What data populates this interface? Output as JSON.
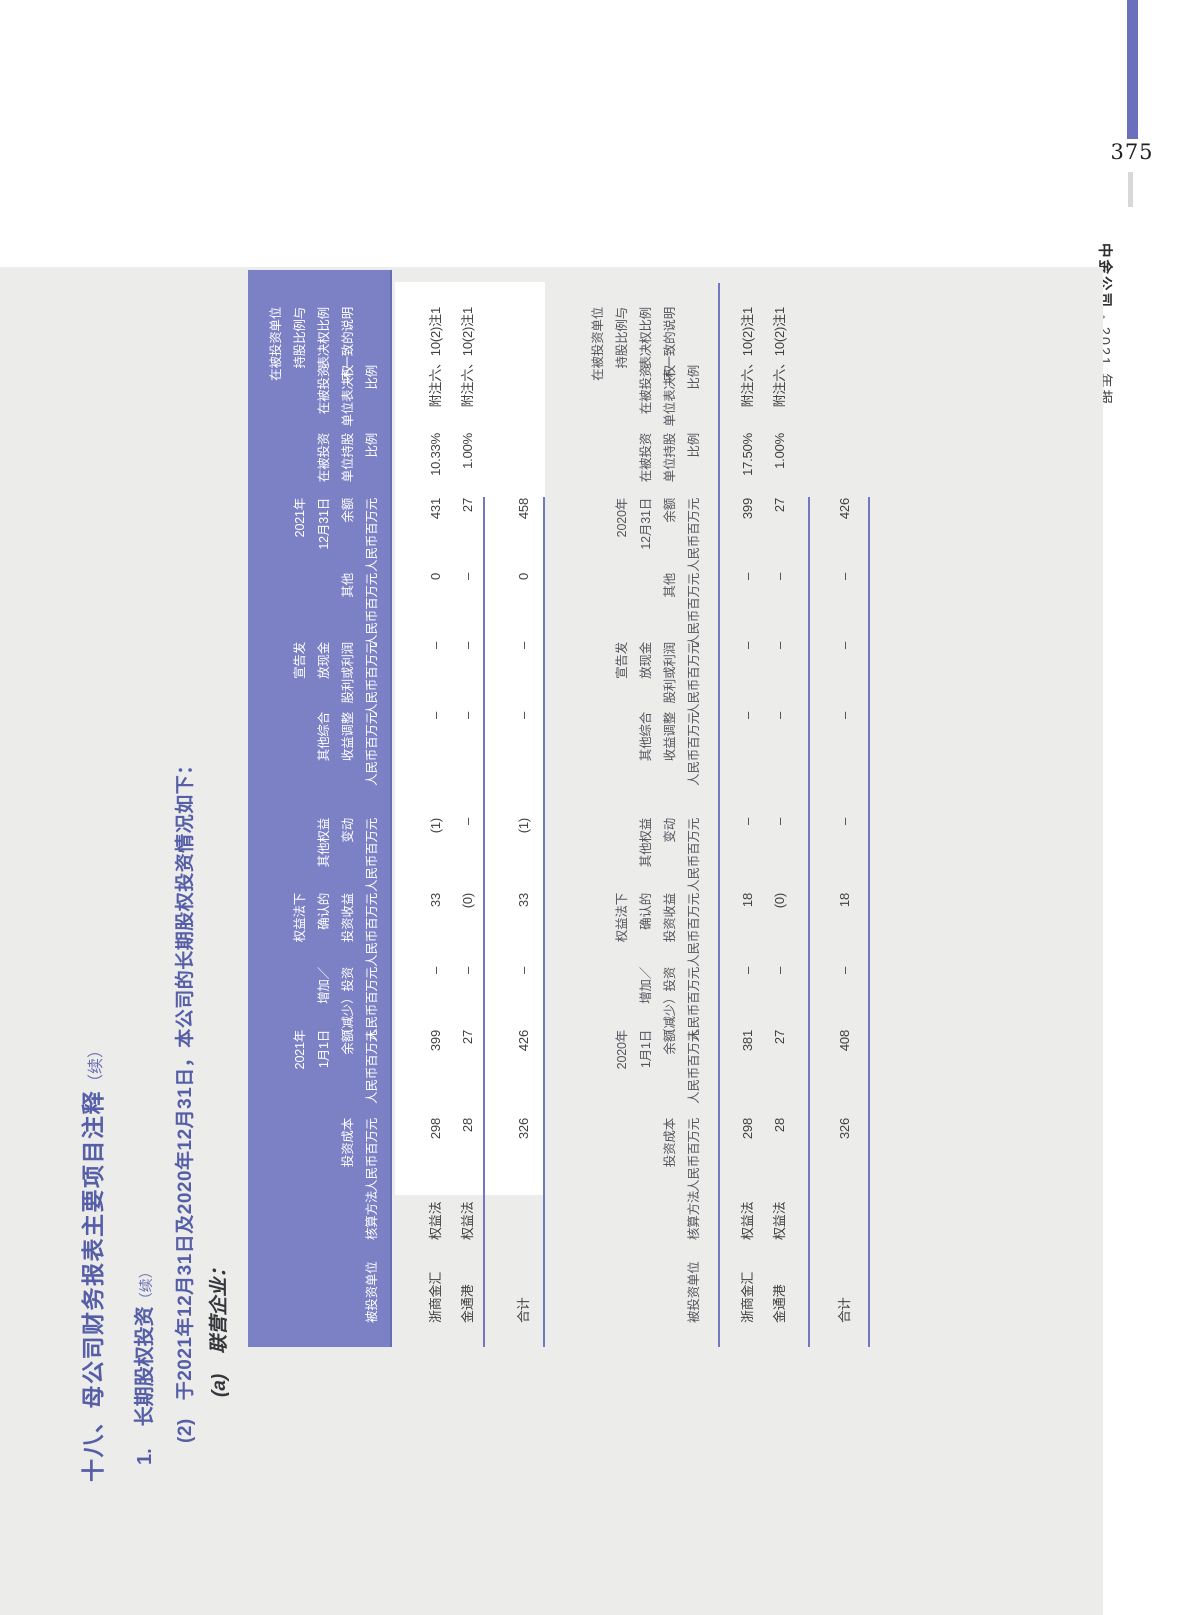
{
  "page": {
    "number": "375",
    "brand": "中金公司",
    "separator": "•",
    "edition": "2021 年报"
  },
  "colors": {
    "accent_purple": "#7c81c6",
    "bar_purple": "#6b70bc",
    "heading_blue": "#555ea7",
    "panel_gray": "#ececeb"
  },
  "headings": {
    "section_title": "十八、母公司财务报表主要项目注释",
    "section_cont": "（续）",
    "item_no": "1.",
    "item_title": "长期股权投资",
    "item_cont": "（续）",
    "clause_no": "(2)",
    "clause_text": "于2021年12月31日及2020年12月31日，本公司的长期股权投资情况如下：",
    "point_no": "(a)",
    "point_title": "联营企业："
  },
  "tables": [
    {
      "year": "2021",
      "columns": [
        {
          "name": "entity",
          "header": [
            "被投资单位"
          ]
        },
        {
          "name": "method",
          "header": [
            "核算方法"
          ]
        },
        {
          "name": "cost",
          "header": [
            "投资成本",
            "人民币百万元"
          ]
        },
        {
          "name": "opening-balance",
          "header": [
            "2021年",
            "1月1日",
            "余额",
            "人民币百万元"
          ]
        },
        {
          "name": "add-reduce",
          "header": [
            "增加／",
            "（减少）投资",
            "人民币百万元"
          ]
        },
        {
          "name": "equity-method-income",
          "header": [
            "权益法下",
            "确认的",
            "投资收益",
            "人民币百万元"
          ]
        },
        {
          "name": "other-equity-change",
          "header": [
            "其他权益",
            "变动",
            "人民币百万元"
          ]
        },
        {
          "name": "oci-adjustment",
          "header": [
            "其他综合",
            "收益调整",
            "人民币百万元"
          ]
        },
        {
          "name": "declared-dividend",
          "header": [
            "宣告发",
            "放现金",
            "股利或利润",
            "人民币百万元"
          ]
        },
        {
          "name": "other",
          "header": [
            "其他",
            "人民币百万元"
          ]
        },
        {
          "name": "closing-balance",
          "header": [
            "2021年",
            "12月31日",
            "余额",
            "人民币百万元"
          ]
        },
        {
          "name": "shareholding-ratio",
          "header": [
            "在被投资",
            "单位持股",
            "比例"
          ]
        },
        {
          "name": "voting-ratio",
          "header": [
            "在被投资",
            "单位表决权",
            "比例"
          ]
        },
        {
          "name": "ratio-note",
          "header": [
            "在被投资单位",
            "持股比例与",
            "表决权比例",
            "不一致的说明"
          ]
        }
      ],
      "rows": [
        [
          "浙商金汇",
          "权益法",
          "298",
          "399",
          "–",
          "33",
          "(1)",
          "–",
          "–",
          "0",
          "431",
          "10.33%",
          "",
          "附注六、10(2)注1"
        ],
        [
          "金通港",
          "权益法",
          "28",
          "27",
          "–",
          "(0)",
          "–",
          "–",
          "–",
          "–",
          "27",
          "1.00%",
          "",
          "附注六、10(2)注1"
        ]
      ],
      "total_row": [
        "合计",
        "",
        "326",
        "426",
        "–",
        "33",
        "(1)",
        "–",
        "–",
        "0",
        "458",
        "",
        "",
        ""
      ]
    },
    {
      "year": "2020",
      "columns": [
        {
          "name": "entity",
          "header": [
            "被投资单位"
          ]
        },
        {
          "name": "method",
          "header": [
            "核算方法"
          ]
        },
        {
          "name": "cost",
          "header": [
            "投资成本",
            "人民币百万元"
          ]
        },
        {
          "name": "opening-balance",
          "header": [
            "2020年",
            "1月1日",
            "余额",
            "人民币百万元"
          ]
        },
        {
          "name": "add-reduce",
          "header": [
            "增加／",
            "（减少）投资",
            "人民币百万元"
          ]
        },
        {
          "name": "equity-method-income",
          "header": [
            "权益法下",
            "确认的",
            "投资收益",
            "人民币百万元"
          ]
        },
        {
          "name": "other-equity-change",
          "header": [
            "其他权益",
            "变动",
            "人民币百万元"
          ]
        },
        {
          "name": "oci-adjustment",
          "header": [
            "其他综合",
            "收益调整",
            "人民币百万元"
          ]
        },
        {
          "name": "declared-dividend",
          "header": [
            "宣告发",
            "放现金",
            "股利或利润",
            "人民币百万元"
          ]
        },
        {
          "name": "other",
          "header": [
            "其他",
            "人民币百万元"
          ]
        },
        {
          "name": "closing-balance",
          "header": [
            "2020年",
            "12月31日",
            "余额",
            "人民币百万元"
          ]
        },
        {
          "name": "shareholding-ratio",
          "header": [
            "在被投资",
            "单位持股",
            "比例"
          ]
        },
        {
          "name": "voting-ratio",
          "header": [
            "在被投资",
            "单位表决权",
            "比例"
          ]
        },
        {
          "name": "ratio-note",
          "header": [
            "在被投资单位",
            "持股比例与",
            "表决权比例",
            "不一致的说明"
          ]
        }
      ],
      "rows": [
        [
          "浙商金汇",
          "权益法",
          "298",
          "381",
          "–",
          "18",
          "–",
          "–",
          "–",
          "–",
          "399",
          "17.50%",
          "",
          "附注六、10(2)注1"
        ],
        [
          "金通港",
          "权益法",
          "28",
          "27",
          "–",
          "(0)",
          "–",
          "–",
          "–",
          "–",
          "27",
          "1.00%",
          "",
          "附注六、10(2)注1"
        ]
      ],
      "total_row": [
        "合计",
        "",
        "326",
        "408",
        "–",
        "18",
        "–",
        "–",
        "–",
        "–",
        "426",
        "",
        "",
        ""
      ]
    }
  ]
}
